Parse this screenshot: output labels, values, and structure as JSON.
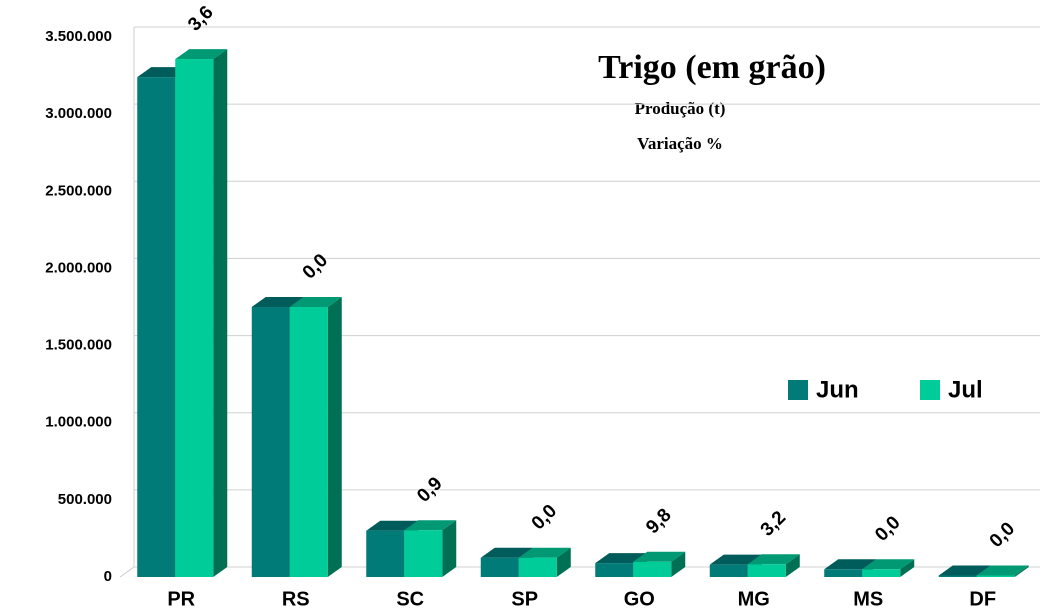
{
  "chart_data": {
    "type": "bar3d",
    "title": "Trigo (em grão)",
    "subtitles": [
      "Produção (t)",
      "Variação %"
    ],
    "categories": [
      "PR",
      "RS",
      "SC",
      "SP",
      "GO",
      "MG",
      "MS",
      "DF"
    ],
    "series": [
      {
        "name": "Jun",
        "color": "#007b78",
        "values": [
          3240000,
          1750000,
          300000,
          125000,
          90000,
          80000,
          50000,
          10000
        ]
      },
      {
        "name": "Jul",
        "color": "#00cc99",
        "values": [
          3357000,
          1750000,
          303000,
          125000,
          98800,
          82600,
          50000,
          10000
        ]
      }
    ],
    "variation_labels": [
      "3,6",
      "0,0",
      "0,9",
      "0,0",
      "9,8",
      "3,2",
      "0,0",
      "0,0"
    ],
    "ylim": [
      0,
      3500000
    ],
    "yticks": [
      0,
      {
        "value": 500000,
        "label": "500.000"
      },
      {
        "value": 1000000,
        "label": "1.000.000"
      },
      {
        "value": 1500000,
        "label": "1.500.000"
      },
      {
        "value": 2000000,
        "label": "2.000.000"
      },
      {
        "value": 2500000,
        "label": "2.500.000"
      },
      {
        "value": 3000000,
        "label": "3.000.000"
      },
      {
        "value": 3500000,
        "label": "3.500.000"
      }
    ],
    "grid": true,
    "legend": "right"
  }
}
